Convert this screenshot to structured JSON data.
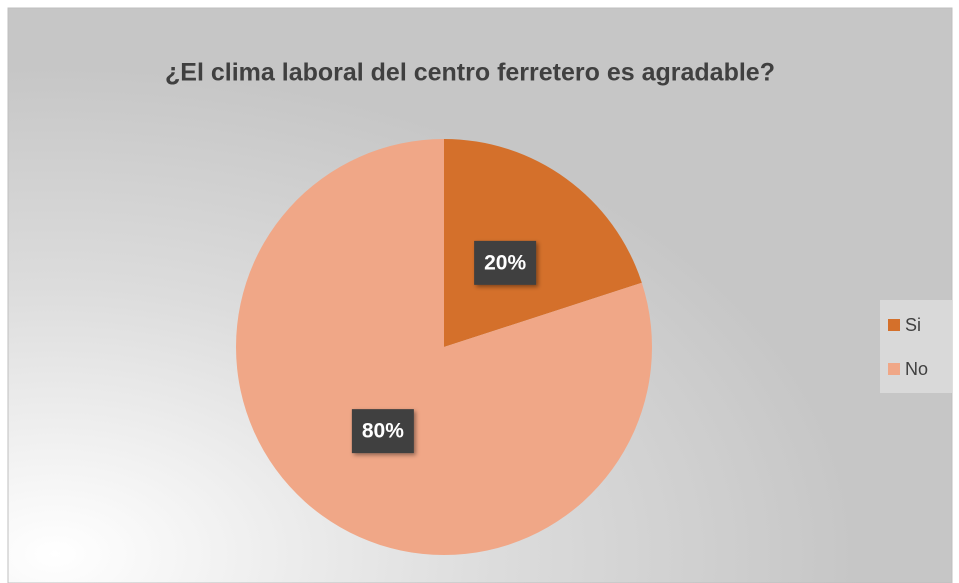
{
  "chart_data": {
    "type": "pie",
    "title": "¿El clima laboral del centro ferretero es agradable?",
    "categories": [
      "Si",
      "No"
    ],
    "values": [
      20,
      80
    ],
    "value_labels": [
      "20%",
      "80%"
    ],
    "colors": [
      "#d4702b",
      "#f0a787"
    ],
    "legend": "right"
  }
}
